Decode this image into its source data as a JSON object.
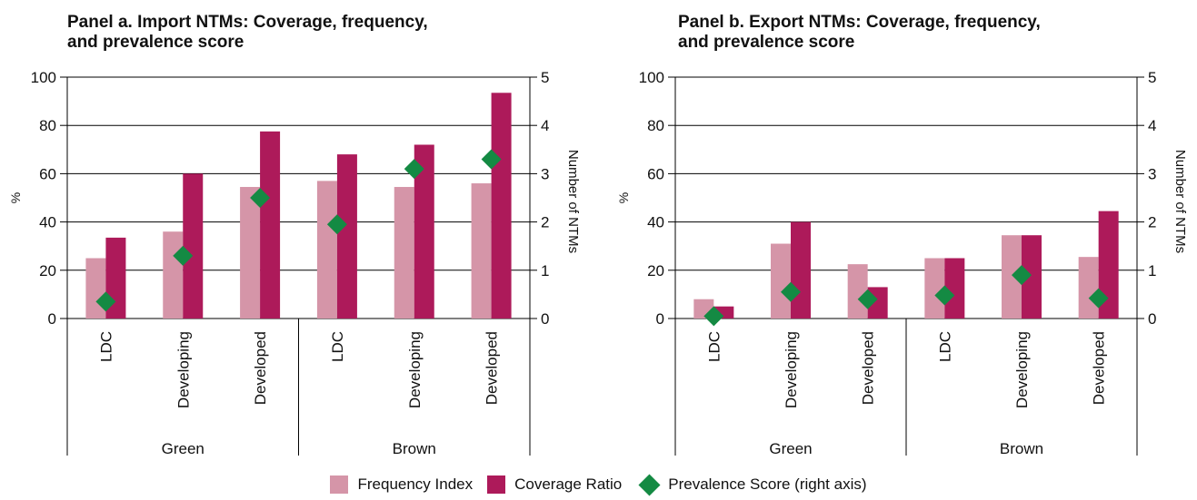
{
  "colors": {
    "frequency": "#d595a8",
    "coverage": "#ad1a5a",
    "prevalence": "#148a43"
  },
  "legend": {
    "frequency": "Frequency Index",
    "coverage": "Coverage Ratio",
    "prevalence": "Prevalence Score (right axis)"
  },
  "chart_data": [
    {
      "type": "bar",
      "title_line1": "Panel a. Import NTMs: Coverage, frequency,",
      "title_line2": "and prevalence score",
      "ylabel": "%",
      "y2label": "Number of NTMs",
      "ylim": [
        0,
        100
      ],
      "y2lim": [
        0,
        5
      ],
      "yticks": [
        "0",
        "20",
        "40",
        "60",
        "80",
        "100"
      ],
      "y2ticks": [
        "0",
        "1",
        "2",
        "3",
        "4",
        "5"
      ],
      "groups": [
        "Green",
        "Brown"
      ],
      "categories": [
        "LDC",
        "Developing",
        "Developed",
        "LDC",
        "Developing",
        "Developed"
      ],
      "series": [
        {
          "name": "Frequency Index",
          "values": [
            25,
            36,
            54.5,
            57,
            54.5,
            56
          ]
        },
        {
          "name": "Coverage Ratio",
          "values": [
            33.5,
            60,
            77.5,
            68,
            72,
            93.5
          ]
        },
        {
          "name": "Prevalence Score (right axis)",
          "axis": "right",
          "values": [
            0.35,
            1.3,
            2.5,
            1.95,
            3.1,
            3.3
          ]
        }
      ]
    },
    {
      "type": "bar",
      "title_line1": "Panel b. Export NTMs: Coverage, frequency,",
      "title_line2": "and prevalence score",
      "ylabel": "%",
      "y2label": "Number of NTMs",
      "ylim": [
        0,
        100
      ],
      "y2lim": [
        0,
        5
      ],
      "yticks": [
        "0",
        "20",
        "40",
        "60",
        "80",
        "100"
      ],
      "y2ticks": [
        "0",
        "1",
        "2",
        "3",
        "4",
        "5"
      ],
      "groups": [
        "Green",
        "Brown"
      ],
      "categories": [
        "LDC",
        "Developing",
        "Developed",
        "LDC",
        "Developing",
        "Developed"
      ],
      "series": [
        {
          "name": "Frequency Index",
          "values": [
            8,
            31,
            22.5,
            25,
            34.5,
            25.5
          ]
        },
        {
          "name": "Coverage Ratio",
          "values": [
            5,
            40,
            13,
            25,
            34.5,
            44.5
          ]
        },
        {
          "name": "Prevalence Score (right axis)",
          "axis": "right",
          "values": [
            0.05,
            0.55,
            0.4,
            0.48,
            0.9,
            0.42
          ]
        }
      ]
    }
  ]
}
